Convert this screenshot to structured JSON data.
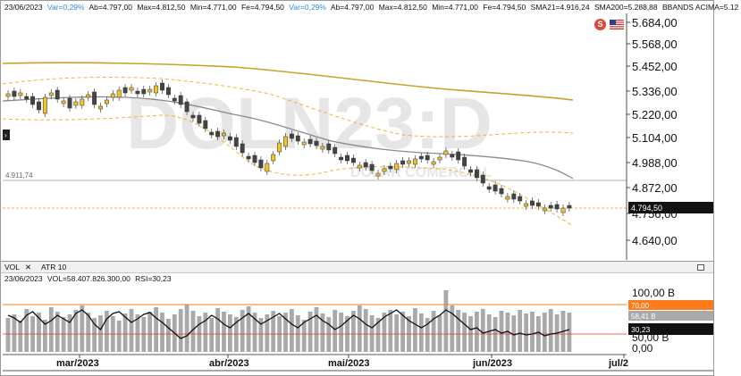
{
  "info_bar": {
    "date": "23/06/2023",
    "var1": "Var=0,29%",
    "ab1": "Ab=4.797,00",
    "max1": "Max=4.812,50",
    "min1": "Min=4.771,00",
    "fe1": "Fe=4.794,50",
    "var2": "Var=0,29%",
    "ab2": "Ab=4.797,00",
    "max2": "Max=4.812,50",
    "min2": "Min=4.771,00",
    "fe2": "Fe=4.794,50",
    "sma21": "SMA21=4.916,24",
    "sma200": "SMA200=5.288,88",
    "bbands": "BBANDS ACIMA=5.12"
  },
  "watermark": {
    "symbol": "DOLN23:D",
    "name": "DOLAR COMERCIAL"
  },
  "price_axis": {
    "ticks": [
      "5.684,00",
      "5.568,00",
      "5.452,00",
      "5.336,00",
      "5.220,00",
      "5.104,00",
      "4.988,00",
      "4.872,00",
      "4.756,00",
      "4.640,00"
    ],
    "current_price": "4.794,50",
    "reference_level": "4.911,74"
  },
  "volume_panel": {
    "tabs": [
      "VOL",
      "ATR 10"
    ],
    "close_symbol": "✕",
    "date": "23/06/2023",
    "vol_text": "VOL=58.407.826.300,00",
    "rsi_text": "RSI=30,23",
    "axis_ticks": [
      "100,00 B",
      "50,00 B",
      "0,00"
    ],
    "level_70": "70,00",
    "vol_label": "58,41 B",
    "rsi_label": "30,23"
  },
  "time_axis": {
    "labels": [
      "mar/2023",
      "abr/2023",
      "mai/2023",
      "jun/2023",
      "jul/2"
    ]
  },
  "icons": {
    "s_badge": "S",
    "flag": "us-flag-icon"
  },
  "colors": {
    "candle_up": "#f2c12e",
    "candle_down": "#444444",
    "sma200": "#c9a227",
    "sma21": "#8a8a8a",
    "bbands": "#e8b830",
    "rsi_70": "#ff7a1a",
    "volume_bar": "#a9a9a9"
  }
}
